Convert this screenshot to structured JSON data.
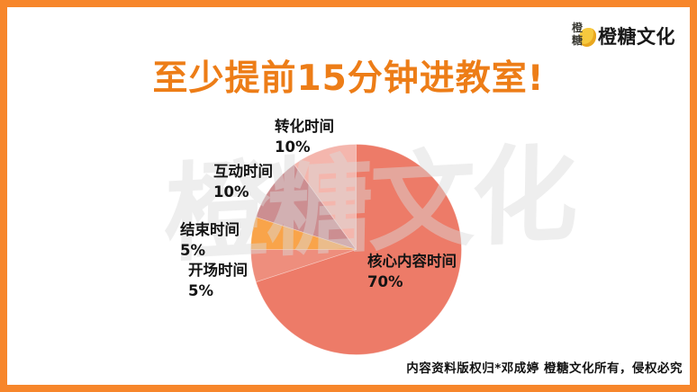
{
  "brand": {
    "logo_text": "橙糖文化",
    "seal_chars": [
      "橙",
      "糖"
    ]
  },
  "title": "至少提前15分钟进教室!",
  "watermark_text": "橙糖文化",
  "copyright": "内容资料版权归*邓成婷 橙糖文化所有，侵权必究",
  "colors": {
    "frame_orange": "#F7862B",
    "title_orange": "#ED7D17",
    "watermark_gray": "#DBDBDB",
    "label_black": "#141414"
  },
  "chart_data": {
    "type": "pie",
    "title": "",
    "direction": "clockwise",
    "start_angle_deg": 0,
    "legend": "none",
    "labels_position": "outside (percent under name), core label inside slice",
    "slices": [
      {
        "label": "核心内容时间",
        "value": 70,
        "pct": "70%",
        "color": "#ED7B68"
      },
      {
        "label": "开场时间",
        "value": 5,
        "pct": "5%",
        "color": "#EE8E7D"
      },
      {
        "label": "结束时间",
        "value": 5,
        "pct": "5%",
        "color": "#F9A44A"
      },
      {
        "label": "互动时间",
        "value": 10,
        "pct": "10%",
        "color": "#CC8E91"
      },
      {
        "label": "转化时间",
        "value": 10,
        "pct": "10%",
        "color": "#F4B6AD"
      }
    ]
  }
}
